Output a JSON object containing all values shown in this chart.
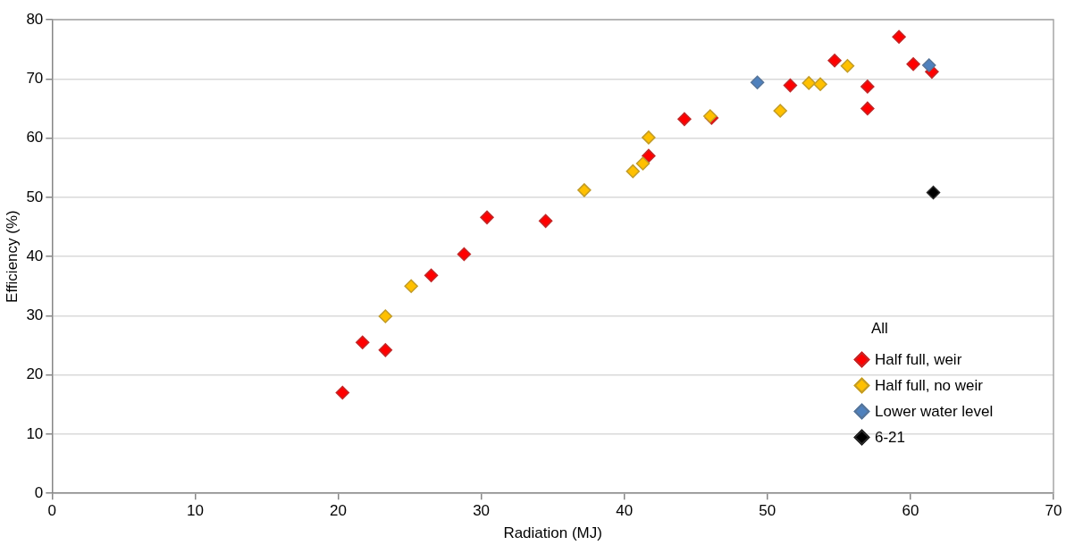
{
  "chart_data": {
    "type": "scatter",
    "xlabel": "Radiation (MJ)",
    "ylabel": "Efficiency (%)",
    "legend_title": "All",
    "xlim": [
      0,
      70
    ],
    "xticks": [
      0,
      10,
      20,
      30,
      40,
      50,
      60,
      70
    ],
    "ylim": [
      0,
      80
    ],
    "yticks": [
      0,
      10,
      20,
      30,
      40,
      50,
      60,
      70,
      80
    ],
    "grid": "y",
    "legend": "bottom right",
    "marker": "diamond",
    "series": [
      {
        "name": "Half full, weir",
        "color": "#ff0000",
        "x": [
          20.3,
          21.7,
          23.3,
          26.5,
          28.8,
          30.4,
          34.5,
          41.7,
          44.2,
          46.1,
          51.6,
          54.7,
          57.0,
          57.0,
          59.2,
          60.2,
          61.5
        ],
        "values": [
          17.0,
          25.5,
          24.2,
          36.8,
          40.4,
          46.6,
          46.0,
          57.0,
          63.2,
          63.4,
          68.9,
          73.1,
          68.7,
          65.0,
          77.1,
          72.5,
          71.2
        ]
      },
      {
        "name": "Half full, no weir",
        "color": "#ffc000",
        "x": [
          23.3,
          25.1,
          37.2,
          40.6,
          41.3,
          41.7,
          46.0,
          50.9,
          52.9,
          53.7,
          55.6
        ],
        "values": [
          29.9,
          35.0,
          51.2,
          54.4,
          55.7,
          60.1,
          63.7,
          64.6,
          69.3,
          69.1,
          72.2
        ]
      },
      {
        "name": "Lower water level",
        "color": "#4f81bd",
        "x": [
          49.3,
          61.3
        ],
        "values": [
          69.4,
          72.3
        ]
      },
      {
        "name": "6-21",
        "color": "#000000",
        "x": [
          61.6
        ],
        "values": [
          50.8
        ]
      }
    ]
  }
}
